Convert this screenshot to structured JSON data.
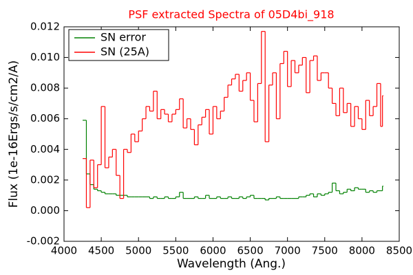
{
  "chart_data": {
    "type": "step",
    "title": "PSF extracted Spectra of 05D4bi_918",
    "xlabel": "Wavelength (Ang.)",
    "ylabel": "Flux (1e-16Ergs/s/cm2/A)",
    "x": [
      4250,
      4300,
      4350,
      4400,
      4450,
      4500,
      4550,
      4600,
      4650,
      4700,
      4750,
      4800,
      4850,
      4900,
      4950,
      5000,
      5050,
      5100,
      5150,
      5200,
      5250,
      5300,
      5350,
      5400,
      5450,
      5500,
      5550,
      5600,
      5650,
      5700,
      5750,
      5800,
      5850,
      5900,
      5950,
      6000,
      6050,
      6100,
      6150,
      6200,
      6250,
      6300,
      6350,
      6400,
      6450,
      6500,
      6550,
      6600,
      6650,
      6700,
      6750,
      6800,
      6850,
      6900,
      6950,
      7000,
      7050,
      7100,
      7150,
      7200,
      7250,
      7300,
      7350,
      7400,
      7450,
      7500,
      7550,
      7600,
      7650,
      7700,
      7750,
      7800,
      7850,
      7900,
      7950,
      8000,
      8050,
      8100,
      8150,
      8200,
      8250,
      8275
    ],
    "series": [
      {
        "name": "SN error",
        "color": "#008000",
        "values": [
          0.0059,
          0.0024,
          0.0017,
          0.0014,
          0.0013,
          0.0012,
          0.0011,
          0.0011,
          0.0011,
          0.001,
          0.001,
          0.001,
          0.0009,
          0.0009,
          0.0009,
          0.0009,
          0.0009,
          0.0009,
          0.0008,
          0.0009,
          0.0008,
          0.0008,
          0.0009,
          0.0008,
          0.0008,
          0.0009,
          0.0012,
          0.0008,
          0.0008,
          0.0008,
          0.0009,
          0.0008,
          0.0008,
          0.001,
          0.0008,
          0.0008,
          0.0009,
          0.0008,
          0.0008,
          0.0009,
          0.0008,
          0.0008,
          0.0009,
          0.0008,
          0.0009,
          0.001,
          0.0008,
          0.0008,
          0.0008,
          0.0007,
          0.0008,
          0.0008,
          0.0009,
          0.0008,
          0.0008,
          0.0008,
          0.0008,
          0.0008,
          0.0009,
          0.0009,
          0.001,
          0.0011,
          0.0009,
          0.0011,
          0.001,
          0.0011,
          0.0012,
          0.0018,
          0.0013,
          0.0011,
          0.0012,
          0.0014,
          0.0013,
          0.0015,
          0.0014,
          0.0014,
          0.0012,
          0.0013,
          0.0012,
          0.0013,
          0.0013,
          0.0016
        ]
      },
      {
        "name": "SN (25A)",
        "color": "#ff0000",
        "values": [
          0.0034,
          0.0002,
          0.0033,
          0.0015,
          0.003,
          0.0068,
          0.0028,
          0.0035,
          0.004,
          0.0023,
          0.0008,
          0.004,
          0.0038,
          0.005,
          0.0045,
          0.0052,
          0.006,
          0.0068,
          0.0065,
          0.0078,
          0.006,
          0.0066,
          0.0063,
          0.0058,
          0.0063,
          0.0066,
          0.0073,
          0.0054,
          0.006,
          0.0053,
          0.0043,
          0.0056,
          0.0061,
          0.0066,
          0.005,
          0.0068,
          0.006,
          0.0065,
          0.0074,
          0.0082,
          0.0086,
          0.0089,
          0.0078,
          0.0085,
          0.009,
          0.0072,
          0.0058,
          0.0083,
          0.0117,
          0.0045,
          0.0082,
          0.009,
          0.006,
          0.0096,
          0.0104,
          0.0081,
          0.0098,
          0.009,
          0.0095,
          0.01,
          0.0077,
          0.0098,
          0.0101,
          0.0085,
          0.009,
          0.009,
          0.008,
          0.007,
          0.0062,
          0.008,
          0.0064,
          0.007,
          0.0055,
          0.0068,
          0.006,
          0.0053,
          0.0072,
          0.0062,
          0.0068,
          0.0083,
          0.0055,
          0.0075
        ]
      }
    ],
    "xlim": [
      4000,
      8500
    ],
    "xticks": [
      4000,
      4500,
      5000,
      5500,
      6000,
      6500,
      7000,
      7500,
      8000,
      8500
    ],
    "ylim": [
      -0.002,
      0.012
    ],
    "yticks": [
      -0.002,
      {
        "value": 0,
        "label": "0.000"
      },
      0.002,
      0.004,
      0.006,
      0.008,
      {
        "value": 0.01,
        "label": "0.010"
      },
      0.012
    ],
    "legend": "upper left",
    "grid": false
  }
}
